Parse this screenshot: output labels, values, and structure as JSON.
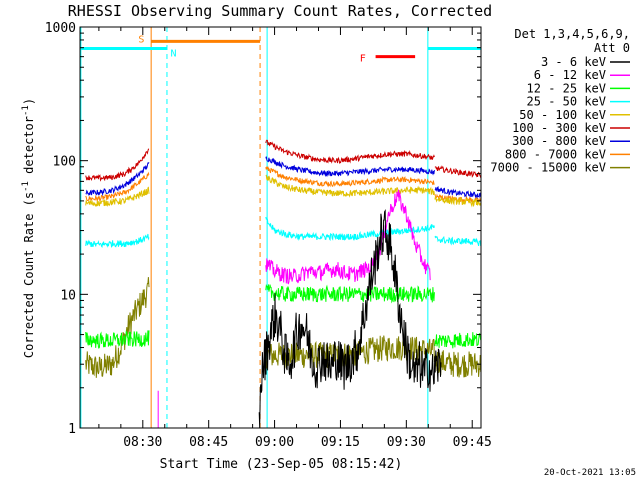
{
  "chart_data": {
    "type": "line",
    "title": "RHESSI Observing Summary Count Rates, Corrected",
    "xlabel": "Start Time (23-Sep-05 08:15:42)",
    "ylabel": "Corrected Count Rate (s⁻¹ detector⁻¹)",
    "ylabel_parts": [
      "Corrected Count Rate (s",
      "-1",
      " detector",
      "-1",
      ")"
    ],
    "yscale": "log",
    "ylim": [
      1,
      1000
    ],
    "y_ticks": [
      {
        "v": 1,
        "label": "1"
      },
      {
        "v": 10,
        "label": "10"
      },
      {
        "v": 100,
        "label": "100"
      },
      {
        "v": 1000,
        "label": "1000"
      }
    ],
    "xlim_minutes": [
      15.7,
      107
    ],
    "x_ticks": [
      {
        "m": 30,
        "label": "08:30"
      },
      {
        "m": 45,
        "label": "08:45"
      },
      {
        "m": 60,
        "label": "09:00"
      },
      {
        "m": 75,
        "label": "09:15"
      },
      {
        "m": 90,
        "label": "09:30"
      },
      {
        "m": 105,
        "label": "09:45"
      }
    ],
    "legend_header": [
      "Det 1,3,4,5,6,9,",
      "Att 0"
    ],
    "legend_position": "right",
    "series": [
      {
        "name": "3 - 6 keV",
        "color": "#000000",
        "segments": [
          {
            "x": [
              56.5,
              57,
              58,
              59,
              60,
              61,
              62,
              63,
              64,
              65,
              66,
              67,
              68,
              69,
              70,
              71,
              72,
              73,
              74,
              75,
              76,
              77,
              78,
              79,
              80,
              81,
              82,
              83,
              84,
              85,
              86,
              87,
              88,
              89,
              90,
              91,
              92,
              93,
              94,
              95,
              96,
              97,
              98
            ],
            "y": [
              1.0,
              2.5,
              3.5,
              5.0,
              7.0,
              6.0,
              4.0,
              3.0,
              3.5,
              5.0,
              6.0,
              5.5,
              4.0,
              3.0,
              3.0,
              3.5,
              3.0,
              2.8,
              3.5,
              3.0,
              2.8,
              3.2,
              3.5,
              4.0,
              6.0,
              9.0,
              13,
              18,
              26,
              30,
              26,
              18,
              10,
              6,
              4,
              3,
              2.5,
              3,
              2.5,
              3,
              2.5,
              3,
              2.8
            ]
          }
        ]
      },
      {
        "name": "6 - 12 keV",
        "color": "#ff00ff",
        "segments": [
          {
            "x": [
              58,
              60,
              62,
              64,
              66,
              68,
              70,
              72,
              74,
              76,
              78,
              80,
              82,
              84,
              86,
              88,
              90,
              92,
              94,
              95.5
            ],
            "y": [
              17,
              15,
              14,
              13.5,
              14,
              15,
              14.5,
              15,
              15.5,
              14.5,
              14,
              15,
              16,
              22,
              40,
              55,
              40,
              24,
              17,
              14
            ]
          }
        ]
      },
      {
        "name": "12 - 25 keV",
        "color": "#00ff00",
        "segments": [
          {
            "x": [
              17,
              20,
              23,
              26,
              29,
              31.5
            ],
            "y": [
              4.6,
              4.5,
              4.5,
              4.6,
              4.6,
              4.7
            ]
          },
          {
            "x": [
              58,
              62,
              66,
              70,
              74,
              78,
              82,
              86,
              90,
              94,
              96.5
            ],
            "y": [
              10.5,
              10,
              10,
              10,
              10,
              10,
              10,
              10,
              10,
              10,
              10
            ]
          },
          {
            "x": [
              96.5,
              100,
              104,
              108,
              110
            ],
            "y": [
              4.5,
              4.5,
              4.6,
              4.5,
              4.5
            ]
          }
        ]
      },
      {
        "name": "25 - 50 keV",
        "color": "#00ffff",
        "segments": [
          {
            "x": [
              17,
              20,
              23,
              26,
              29,
              31.5
            ],
            "y": [
              24,
              23.5,
              24,
              24,
              25,
              27
            ]
          },
          {
            "x": [
              58,
              60,
              63,
              66,
              70,
              74,
              78,
              82,
              86,
              90,
              94,
              96.5
            ],
            "y": [
              36,
              30,
              28,
              27,
              27,
              27,
              27,
              28,
              29,
              30,
              31,
              32
            ]
          },
          {
            "x": [
              96.5,
              100,
              104,
              108,
              110
            ],
            "y": [
              26,
              25,
              25,
              24,
              24
            ]
          }
        ]
      },
      {
        "name": "50 - 100 keV",
        "color": "#e0c000",
        "segments": [
          {
            "x": [
              17,
              20,
              23,
              26,
              29,
              31.5
            ],
            "y": [
              48,
              48,
              49,
              50,
              55,
              60
            ]
          },
          {
            "x": [
              58,
              62,
              66,
              70,
              74,
              78,
              82,
              86,
              90,
              94,
              96.5
            ],
            "y": [
              75,
              64,
              60,
              58,
              57,
              57,
              58,
              59,
              60,
              60,
              58
            ]
          },
          {
            "x": [
              96.5,
              100,
              104,
              108,
              110
            ],
            "y": [
              52,
              50,
              49,
              48,
              48
            ]
          }
        ]
      },
      {
        "name": "100 - 300 keV",
        "color": "#cc0000",
        "segments": [
          {
            "x": [
              17,
              20,
              23,
              26,
              29,
              31.5
            ],
            "y": [
              75,
              74,
              75,
              80,
              95,
              125
            ]
          },
          {
            "x": [
              58,
              62,
              66,
              70,
              74,
              78,
              82,
              86,
              90,
              94,
              96.5
            ],
            "y": [
              138,
              118,
              108,
              102,
              100,
              103,
              108,
              112,
              112,
              108,
              104
            ]
          },
          {
            "x": [
              96.5,
              100,
              104,
              108,
              110
            ],
            "y": [
              88,
              84,
              80,
              77,
              76
            ]
          }
        ]
      },
      {
        "name": "300 - 800 keV",
        "color": "#0000dd",
        "segments": [
          {
            "x": [
              17,
              20,
              23,
              26,
              29,
              31.5
            ],
            "y": [
              57,
              58,
              60,
              66,
              78,
              95
            ]
          },
          {
            "x": [
              58,
              62,
              66,
              70,
              74,
              78,
              82,
              86,
              90,
              94,
              96.5
            ],
            "y": [
              105,
              92,
              85,
              81,
              80,
              82,
              84,
              86,
              86,
              84,
              82
            ]
          },
          {
            "x": [
              96.5,
              100,
              104,
              108,
              110
            ],
            "y": [
              62,
              58,
              56,
              55,
              55
            ]
          }
        ]
      },
      {
        "name": "800 - 7000 keV",
        "color": "#ff8000",
        "segments": [
          {
            "x": [
              17,
              20,
              23,
              26,
              29,
              31.5
            ],
            "y": [
              52,
              52,
              54,
              58,
              68,
              80
            ]
          },
          {
            "x": [
              58,
              62,
              66,
              70,
              74,
              78,
              82,
              86,
              90,
              94,
              96.5
            ],
            "y": [
              88,
              76,
              71,
              68,
              67,
              68,
              70,
              72,
              72,
              70,
              68
            ]
          },
          {
            "x": [
              96.5,
              100,
              104,
              108,
              110
            ],
            "y": [
              54,
              52,
              51,
              50,
              50
            ]
          }
        ]
      },
      {
        "name": "7000 - 15000 keV",
        "color": "#808000",
        "segments": [
          {
            "x": [
              17,
              20,
              23,
              25,
              27,
              29,
              31.5
            ],
            "y": [
              3.0,
              2.8,
              3.0,
              4.0,
              6.0,
              8.0,
              11.0
            ]
          },
          {
            "x": [
              58,
              62,
              66,
              70,
              74,
              78,
              82,
              86,
              90,
              94,
              96.5
            ],
            "y": [
              3.5,
              3.5,
              3.5,
              3.5,
              3.5,
              3.6,
              3.8,
              4.0,
              4.0,
              3.8,
              3.7
            ]
          },
          {
            "x": [
              96.5,
              100,
              104,
              108,
              110
            ],
            "y": [
              3.2,
              3.0,
              3.0,
              3.0,
              3.0
            ]
          }
        ]
      }
    ],
    "spikes": [
      {
        "x": 33.5,
        "y_low": 1,
        "y_high": 1.9,
        "color": "#ff00ff"
      }
    ],
    "vertical_lines": [
      {
        "x": 15.9,
        "color": "#00ffff",
        "style": "solid"
      },
      {
        "x": 31.9,
        "color": "#ff8000",
        "style": "solid"
      },
      {
        "x": 35.5,
        "color": "#00ffff",
        "style": "dashed"
      },
      {
        "x": 56.7,
        "color": "#ff8000",
        "style": "dashed"
      },
      {
        "x": 58.3,
        "color": "#00ffff",
        "style": "solid"
      },
      {
        "x": 94.9,
        "color": "#00ffff",
        "style": "solid"
      },
      {
        "x": 112.9,
        "color": "#00ffff",
        "style": "dashed"
      }
    ],
    "flag_bars": [
      {
        "label": "S",
        "color": "#ff8000",
        "x_start": 31.9,
        "x_end": 56.7,
        "y": 780
      },
      {
        "label": "N",
        "color": "#00ffff",
        "x_start": 15.9,
        "x_end": 35.5,
        "y": 690
      },
      {
        "label": "N",
        "color": "#00ffff",
        "x_start": 94.9,
        "x_end": 112.9,
        "y": 690
      },
      {
        "label": "F",
        "color": "#ff0000",
        "x_start": 83.0,
        "x_end": 92.0,
        "y": 600
      }
    ]
  },
  "footer_date": "20-Oct-2021 13:05"
}
